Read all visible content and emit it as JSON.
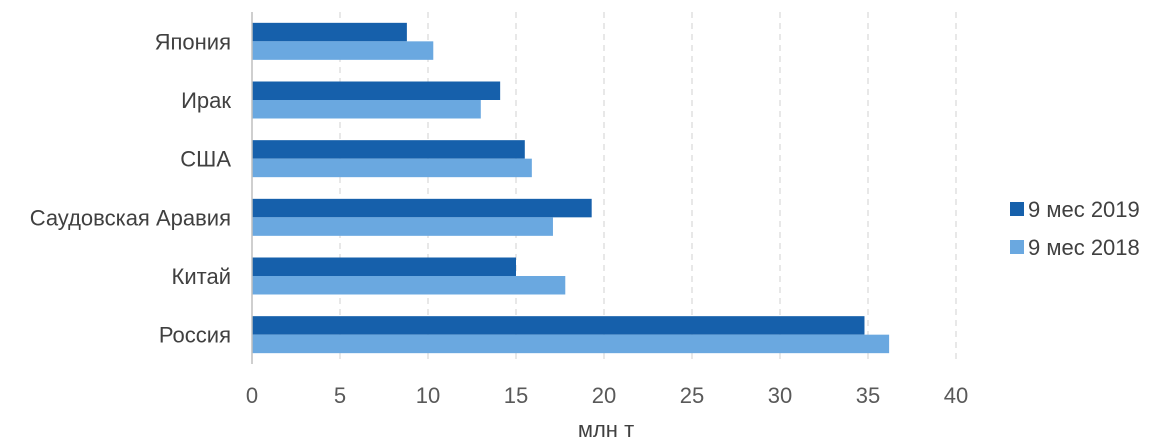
{
  "chart_data": {
    "type": "bar",
    "orientation": "horizontal",
    "categories": [
      "Япония",
      "Ирак",
      "США",
      "Саудовская Аравия",
      "Китай",
      "Россия"
    ],
    "series": [
      {
        "name": "9 мес 2019",
        "color": "#1660ab",
        "values": [
          8.8,
          14.1,
          15.5,
          19.3,
          15.0,
          34.8
        ]
      },
      {
        "name": "9 мес 2018",
        "color": "#6aa8e0",
        "values": [
          10.3,
          13.0,
          15.9,
          17.1,
          17.8,
          36.2
        ]
      }
    ],
    "xlabel": "млн т",
    "xlim": [
      0,
      40
    ],
    "xticks": [
      "0",
      "5",
      "10",
      "15",
      "20",
      "25",
      "30",
      "35",
      "40"
    ],
    "grid": true,
    "legend_position": "right"
  }
}
